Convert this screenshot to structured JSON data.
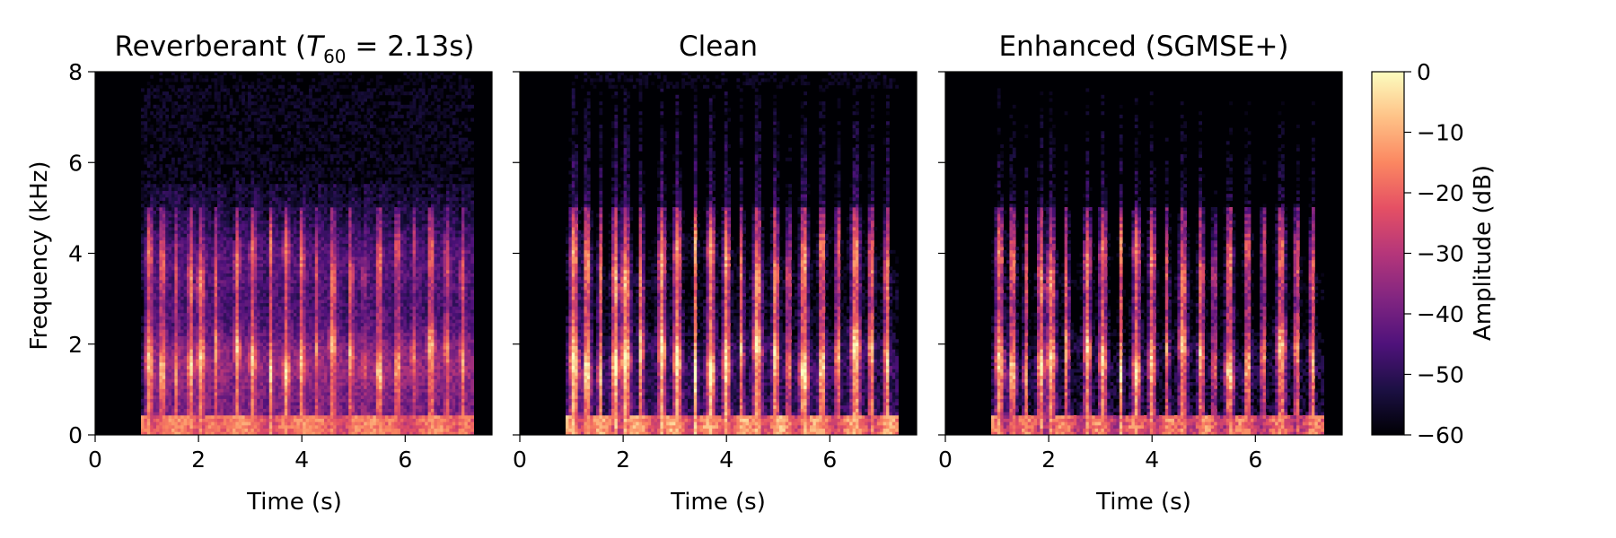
{
  "chart_data": {
    "type": "heatmap",
    "panels": [
      {
        "title": "Reverberant (T60 = 2.13s)",
        "xlabel": "Time (s)",
        "ylabel": "Frequency (kHz)",
        "kind": "reverberant"
      },
      {
        "title": "Clean",
        "xlabel": "Time (s)",
        "ylabel": "",
        "kind": "clean"
      },
      {
        "title": "Enhanced (SGMSE+)",
        "xlabel": "Time (s)",
        "ylabel": "",
        "kind": "enhanced"
      }
    ],
    "x_ticks": [
      "0",
      "2",
      "4",
      "6"
    ],
    "x_tick_values": [
      0,
      2,
      4,
      6
    ],
    "xlim": [
      0,
      7.68
    ],
    "y_ticks": [
      "0",
      "2",
      "4",
      "6",
      "8"
    ],
    "y_tick_values": [
      0,
      2,
      4,
      6,
      8
    ],
    "ylim": [
      0,
      8
    ],
    "speech_range_s": [
      0.9,
      7.3
    ],
    "colorbar": {
      "label": "Amplitude (dB)",
      "colormap": "magma",
      "range": [
        -60,
        0
      ],
      "ticks": [
        "0",
        "−10",
        "−20",
        "−30",
        "−40",
        "−50",
        "−60"
      ],
      "tick_values": [
        0,
        -10,
        -20,
        -30,
        -40,
        -50,
        -60
      ]
    }
  }
}
